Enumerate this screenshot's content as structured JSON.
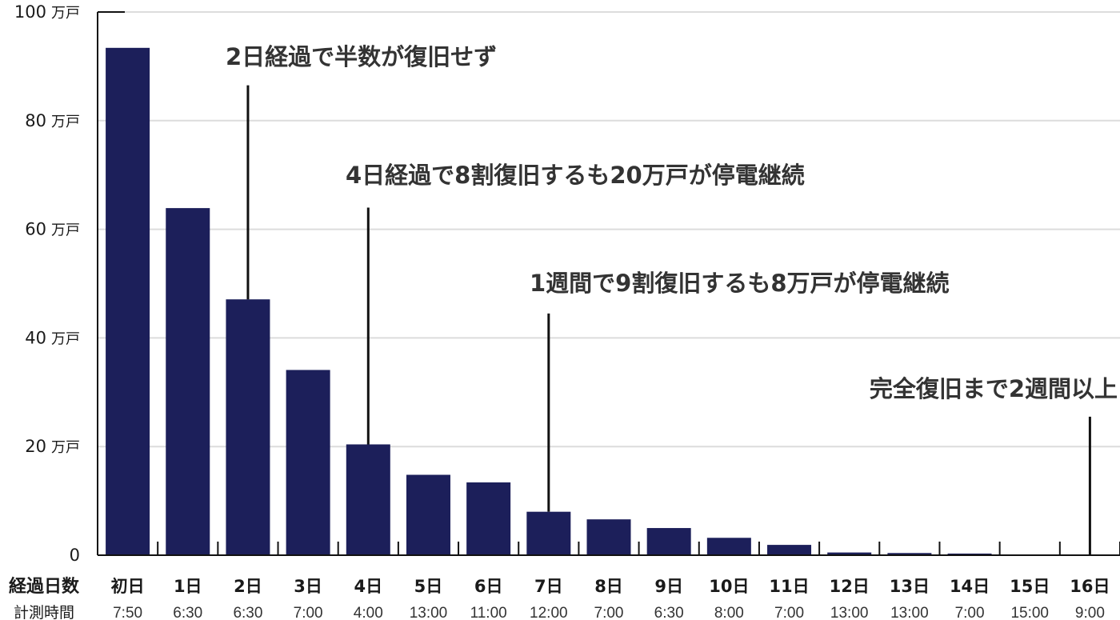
{
  "chart_data": {
    "type": "bar",
    "categories": [
      "初日",
      "1日",
      "2日",
      "3日",
      "4日",
      "5日",
      "6日",
      "7日",
      "8日",
      "9日",
      "10日",
      "11日",
      "12日",
      "13日",
      "14日",
      "15日",
      "16日"
    ],
    "times": [
      "7:50",
      "6:30",
      "6:30",
      "7:00",
      "4:00",
      "13:00",
      "11:00",
      "12:00",
      "7:00",
      "6:30",
      "8:00",
      "7:00",
      "13:00",
      "13:00",
      "7:00",
      "15:00",
      "9:00"
    ],
    "values": [
      93.4,
      63.9,
      47.1,
      34.1,
      20.4,
      14.8,
      13.4,
      8.0,
      6.6,
      5.0,
      3.2,
      1.9,
      0.5,
      0.4,
      0.3,
      0.1,
      0
    ],
    "ylim": [
      0,
      100
    ],
    "yticks": [
      {
        "value": 0,
        "label": "0",
        "unit": ""
      },
      {
        "value": 20,
        "label": "20",
        "unit": "万戸"
      },
      {
        "value": 40,
        "label": "40",
        "unit": "万戸"
      },
      {
        "value": 60,
        "label": "60",
        "unit": "万戸"
      },
      {
        "value": 80,
        "label": "80",
        "unit": "万戸"
      },
      {
        "value": 100,
        "label": "100",
        "unit": "万戸"
      }
    ],
    "xlabel": "経過日数",
    "time_label": "計測時間",
    "grid": true,
    "bar_color": "#1c1f5a",
    "annotations": [
      {
        "text": "2日経過で半数が復旧せず",
        "category": "2日",
        "line_top_value": 86.5
      },
      {
        "text": "4日経過で8割復旧するも20万戸が停電継続",
        "category": "4日",
        "line_top_value": 64
      },
      {
        "text": "1週間で9割復旧するも8万戸が停電継続",
        "category": "7日",
        "line_top_value": 44.5
      },
      {
        "text": "完全復旧まで2週間以上",
        "category": "16日",
        "line_top_value": 25.5
      }
    ]
  }
}
